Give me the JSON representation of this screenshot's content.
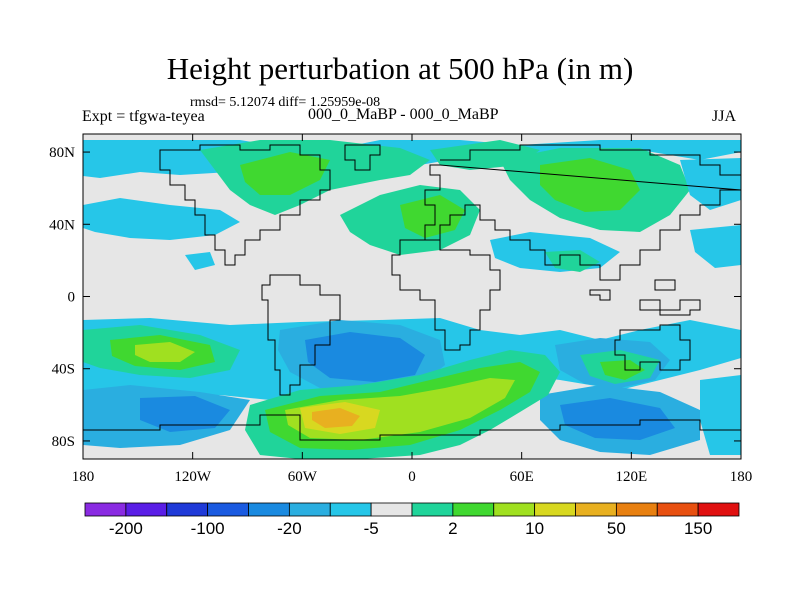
{
  "header": {
    "title": "Height perturbation at 500 hPa (in m)",
    "stats": "rmsd= 5.12074 diff= 1.25959e-08",
    "left_label": "Expt = tfgwa-teyea",
    "center_label": "000_0_MaBP - 000_0_MaBP",
    "right_label": "JJA"
  },
  "map": {
    "background_color": "#e6e6e6",
    "lat_labels": [
      "80N",
      "40N",
      "0",
      "40S",
      "80S"
    ],
    "lat_values": [
      80,
      40,
      0,
      -40,
      -80
    ],
    "lon_labels": [
      "180",
      "120W",
      "60W",
      "0",
      "60E",
      "120E",
      "180"
    ],
    "lon_values": [
      -180,
      -120,
      -60,
      0,
      60,
      120,
      180
    ]
  },
  "colorbar": {
    "labels": [
      "-200",
      "-100",
      "-20",
      "-5",
      "2",
      "10",
      "50",
      "150"
    ],
    "colors": [
      "#8a2be2",
      "#5a1ee6",
      "#1f3ad8",
      "#1a5ae0",
      "#1a8ae0",
      "#2aaee0",
      "#26c6e8",
      "#e6e6e6",
      "#20d49a",
      "#40d830",
      "#a0e020",
      "#d8d820",
      "#e8b020",
      "#e88010",
      "#e85010",
      "#e01010"
    ]
  },
  "contour_colors": {
    "neg_light": "#26c6e8",
    "neg_med": "#2aaee0",
    "neg_strong": "#1a8ae0",
    "neg_deep": "#1a5ae0",
    "pos_light": "#20d49a",
    "pos_med": "#40d830",
    "pos_strong": "#a0e020",
    "pos_deep": "#d8d820",
    "pos_peak": "#e8b020"
  }
}
